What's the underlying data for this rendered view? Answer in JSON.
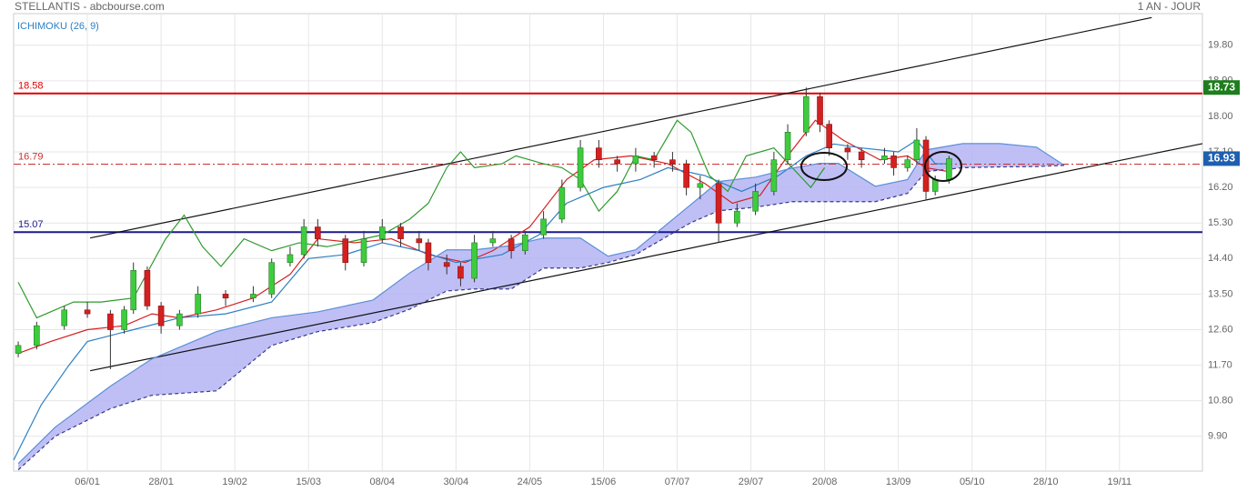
{
  "chart_data": {
    "type": "candlestick",
    "title": "STELLANTIS - abcbourse.com",
    "period": "1 AN - JOUR",
    "indicator": "ICHIMOKU (26, 9)",
    "xlim": [
      -16,
      242
    ],
    "xticks": [
      {
        "value": 0,
        "label": "06/01"
      },
      {
        "value": 16,
        "label": "28/01"
      },
      {
        "value": 32,
        "label": "19/02"
      },
      {
        "value": 48,
        "label": "15/03"
      },
      {
        "value": 64,
        "label": "08/04"
      },
      {
        "value": 80,
        "label": "30/04"
      },
      {
        "value": 96,
        "label": "24/05"
      },
      {
        "value": 112,
        "label": "15/06"
      },
      {
        "value": 128,
        "label": "07/07"
      },
      {
        "value": 144,
        "label": "29/07"
      },
      {
        "value": 160,
        "label": "20/08"
      },
      {
        "value": 176,
        "label": "13/09"
      },
      {
        "value": 192,
        "label": "05/10"
      },
      {
        "value": 208,
        "label": "28/10"
      },
      {
        "value": 224,
        "label": "19/11"
      }
    ],
    "ylim": [
      9.02,
      20.6
    ],
    "yticks": [
      {
        "value": 9.9,
        "label": "9.90"
      },
      {
        "value": 10.8,
        "label": "10.80"
      },
      {
        "value": 11.7,
        "label": "11.70"
      },
      {
        "value": 12.6,
        "label": "12.60"
      },
      {
        "value": 13.5,
        "label": "13.50"
      },
      {
        "value": 14.4,
        "label": "14.40"
      },
      {
        "value": 15.3,
        "label": "15.30"
      },
      {
        "value": 16.2,
        "label": "16.20"
      },
      {
        "value": 17.1,
        "label": "17.10"
      },
      {
        "value": 18.0,
        "label": "18.00"
      },
      {
        "value": 18.9,
        "label": "18.90"
      },
      {
        "value": 19.8,
        "label": "19.80"
      }
    ],
    "grid": true,
    "candles": {
      "up_color": "#3dcc3d",
      "down_color": "#d42020",
      "x": [
        -15,
        -11,
        -5,
        0,
        5,
        8,
        10,
        13,
        16,
        20,
        24,
        30,
        36,
        40,
        44,
        47,
        50,
        56,
        60,
        64,
        68,
        72,
        74,
        78,
        81,
        84,
        88,
        92,
        95,
        99,
        103,
        107,
        111,
        115,
        119,
        123,
        127,
        130,
        133,
        137,
        141,
        145,
        149,
        152,
        156,
        159,
        161,
        165,
        168,
        173,
        175,
        178,
        180,
        182,
        184,
        187
      ],
      "open": [
        12.0,
        12.2,
        12.7,
        13.1,
        13.0,
        12.6,
        13.1,
        14.1,
        13.2,
        12.7,
        13.0,
        13.5,
        13.4,
        13.5,
        14.3,
        14.5,
        15.2,
        14.9,
        14.3,
        14.9,
        15.2,
        14.9,
        14.8,
        14.3,
        14.2,
        13.9,
        14.8,
        14.9,
        14.6,
        15.0,
        15.4,
        16.2,
        17.2,
        16.9,
        16.8,
        17.0,
        16.9,
        16.8,
        16.2,
        16.3,
        15.3,
        15.6,
        16.1,
        16.9,
        17.6,
        18.5,
        17.8,
        17.2,
        17.1,
        16.9,
        17.0,
        16.7,
        16.9,
        17.4,
        16.1,
        16.4
      ],
      "high": [
        12.3,
        12.8,
        13.2,
        13.3,
        13.1,
        13.2,
        14.3,
        14.2,
        13.3,
        13.1,
        13.7,
        13.6,
        13.7,
        14.4,
        14.7,
        15.4,
        15.4,
        15.0,
        15.1,
        15.4,
        15.3,
        15.1,
        14.9,
        14.5,
        14.3,
        15.0,
        15.1,
        15.0,
        15.1,
        15.6,
        16.4,
        17.4,
        17.4,
        17.0,
        17.2,
        17.1,
        17.1,
        16.9,
        16.5,
        16.4,
        15.8,
        16.3,
        17.1,
        17.8,
        18.73,
        18.6,
        17.9,
        17.3,
        17.2,
        17.2,
        17.1,
        17.0,
        17.7,
        17.5,
        16.5,
        17.0
      ],
      "low": [
        11.9,
        12.1,
        12.6,
        12.9,
        11.6,
        12.5,
        13.0,
        13.1,
        12.5,
        12.6,
        12.9,
        13.2,
        13.3,
        13.4,
        14.2,
        14.4,
        14.7,
        14.1,
        14.2,
        14.8,
        14.7,
        14.6,
        14.1,
        14.0,
        13.7,
        13.8,
        14.7,
        14.4,
        14.5,
        14.9,
        15.3,
        16.1,
        16.7,
        16.6,
        16.6,
        16.7,
        16.6,
        16.0,
        15.9,
        14.8,
        15.2,
        15.5,
        16.0,
        16.8,
        17.5,
        17.6,
        17.0,
        16.9,
        16.7,
        16.8,
        16.5,
        16.6,
        16.8,
        15.9,
        16.0,
        16.3
      ],
      "close": [
        12.2,
        12.7,
        13.1,
        13.0,
        12.6,
        13.1,
        14.1,
        13.2,
        12.7,
        13.0,
        13.5,
        13.4,
        13.5,
        14.3,
        14.5,
        15.2,
        14.9,
        14.3,
        14.9,
        15.2,
        14.9,
        14.8,
        14.3,
        14.2,
        13.9,
        14.8,
        14.9,
        14.6,
        15.0,
        15.4,
        16.2,
        17.2,
        16.9,
        16.8,
        17.0,
        16.9,
        16.8,
        16.2,
        16.3,
        15.3,
        15.6,
        16.1,
        16.9,
        17.6,
        18.5,
        17.8,
        17.2,
        17.1,
        16.9,
        17.0,
        16.7,
        16.9,
        17.4,
        16.1,
        16.4,
        16.93
      ]
    },
    "series": [
      {
        "color": "#d42020",
        "x": [
          -15,
          -8,
          0,
          8,
          14,
          20,
          28,
          36,
          44,
          50,
          58,
          66,
          74,
          82,
          88,
          96,
          104,
          110,
          118,
          126,
          134,
          140,
          146,
          152,
          158,
          164,
          172,
          178,
          182,
          187
        ],
        "values": [
          12.0,
          12.3,
          12.6,
          12.7,
          13.0,
          12.9,
          13.1,
          13.4,
          14.0,
          14.9,
          14.8,
          14.9,
          14.5,
          14.3,
          14.6,
          15.2,
          16.4,
          16.9,
          17.0,
          16.8,
          16.3,
          15.8,
          16.0,
          17.0,
          17.9,
          17.4,
          16.9,
          17.0,
          16.7,
          16.6
        ]
      },
      {
        "color": "#2b7fc4",
        "x": [
          -16,
          -10,
          -4,
          0,
          10,
          20,
          30,
          40,
          48,
          56,
          64,
          72,
          80,
          90,
          98,
          104,
          112,
          120,
          126,
          134,
          142,
          150,
          156,
          162,
          168,
          176,
          180,
          184,
          187
        ],
        "values": [
          9.3,
          10.7,
          11.7,
          12.3,
          12.6,
          12.9,
          13.0,
          13.3,
          14.4,
          14.5,
          14.8,
          14.6,
          14.3,
          14.5,
          15.0,
          15.8,
          16.2,
          16.4,
          16.7,
          16.5,
          16.1,
          16.5,
          17.0,
          17.3,
          17.2,
          17.1,
          17.4,
          16.8,
          16.8
        ]
      },
      {
        "color": "#2e9a2e",
        "x": [
          -15,
          -11,
          -3,
          3,
          10,
          17,
          21,
          25,
          29,
          34,
          40,
          46,
          52,
          56,
          64,
          70,
          74,
          78,
          81,
          84,
          90,
          93,
          99,
          103,
          107,
          111,
          115,
          119,
          123,
          128,
          131,
          135,
          139,
          143,
          149,
          153,
          157,
          160
        ],
        "values": [
          13.8,
          12.9,
          13.3,
          13.3,
          13.4,
          14.9,
          15.5,
          14.7,
          14.2,
          14.9,
          14.6,
          14.8,
          14.7,
          14.8,
          15.0,
          15.4,
          15.8,
          16.7,
          17.1,
          16.7,
          16.8,
          17.0,
          16.8,
          16.7,
          16.4,
          15.6,
          16.1,
          17.0,
          16.9,
          17.9,
          17.6,
          16.5,
          16.1,
          17.0,
          17.2,
          16.7,
          16.2,
          16.7
        ]
      },
      {
        "color": "#5b8fd6",
        "x": [
          -15,
          -7,
          5,
          14,
          28,
          40,
          50,
          62,
          70,
          78,
          84,
          92,
          99,
          107,
          113,
          119,
          131,
          137,
          145,
          153,
          159,
          163,
          171,
          178,
          182,
          190,
          198,
          206,
          212
        ],
        "values": [
          9.21,
          10.13,
          11.17,
          11.86,
          12.55,
          12.9,
          13.05,
          13.35,
          14.04,
          14.62,
          14.62,
          14.73,
          14.92,
          14.92,
          14.46,
          14.62,
          15.77,
          16.35,
          16.46,
          16.69,
          16.81,
          16.81,
          16.23,
          16.4,
          17.15,
          17.31,
          17.31,
          17.22,
          16.76
        ]
      },
      {
        "color": "#3a3a8a",
        "dashed": true,
        "x": [
          -15,
          -7,
          5,
          14,
          28,
          40,
          50,
          62,
          70,
          78,
          84,
          92,
          99,
          107,
          113,
          119,
          131,
          137,
          145,
          153,
          159,
          163,
          171,
          178,
          182,
          190,
          198,
          206,
          212
        ],
        "values": [
          9.05,
          9.9,
          10.6,
          10.94,
          11.05,
          12.2,
          12.55,
          12.78,
          13.12,
          13.58,
          13.63,
          13.63,
          14.16,
          14.16,
          14.3,
          14.5,
          15.31,
          15.61,
          15.7,
          15.84,
          15.84,
          15.84,
          15.84,
          16.05,
          16.6,
          16.7,
          16.72,
          16.73,
          16.76
        ]
      }
    ],
    "cloud_color": "#b4b4f4",
    "trendlines": [
      {
        "x": [
          0.6,
          231
        ],
        "values": [
          14.92,
          20.5
        ]
      },
      {
        "x": [
          0.6,
          242
        ],
        "values": [
          11.56,
          17.31
        ]
      }
    ],
    "levels": [
      {
        "value": 18.58,
        "color": "#e00000",
        "style": "solid"
      },
      {
        "value": 16.79,
        "color": "#c83030",
        "style": "dashdot"
      },
      {
        "value": 15.07,
        "color": "#1a1a8c",
        "style": "solid"
      }
    ],
    "price_badges": [
      {
        "value": 18.73,
        "color": "#1e7d1e"
      },
      {
        "value": 16.93,
        "color": "#1e5fb0"
      }
    ]
  }
}
